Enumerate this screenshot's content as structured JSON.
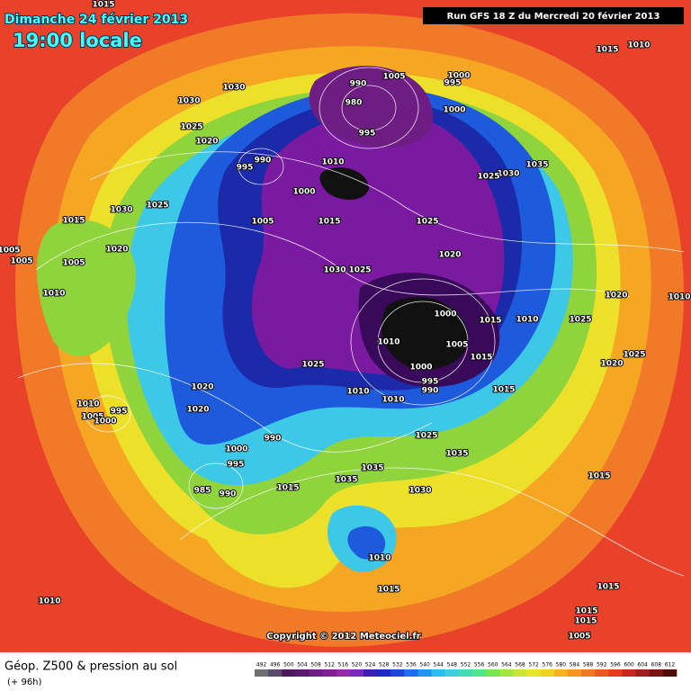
{
  "header": {
    "date": "Dimanche 24 février 2013",
    "time": "19:00 locale",
    "run": "Run GFS 18 Z du Mercredi 20 février 2013"
  },
  "copyright": "Copyright © 2012 Meteociel.fr",
  "footer": {
    "product": "Géop. Z500 & pression au sol",
    "lead": "(+ 96h)"
  },
  "legend": {
    "labels": [
      492,
      496,
      500,
      504,
      508,
      512,
      516,
      520,
      524,
      528,
      532,
      536,
      540,
      544,
      548,
      552,
      556,
      560,
      564,
      568,
      572,
      576,
      580,
      584,
      588,
      592,
      596,
      600,
      604,
      608,
      612
    ],
    "colors": [
      "#707070",
      "#5a4a6a",
      "#4a1a5a",
      "#5a1a6e",
      "#6e1e82",
      "#821e96",
      "#9628aa",
      "#7a28be",
      "#3c1eb4",
      "#1e28c8",
      "#1e46dc",
      "#1e6ef0",
      "#1e96f0",
      "#28bef0",
      "#3cd2dc",
      "#46dcb4",
      "#50e68c",
      "#78e650",
      "#a0e63c",
      "#c8e632",
      "#e6e628",
      "#f0d21e",
      "#f5b41e",
      "#f5961e",
      "#f0781e",
      "#eb5a1e",
      "#e63c1e",
      "#c8281e",
      "#a01e1e",
      "#781414",
      "#500a0a"
    ]
  },
  "pressure_labels": [
    1015,
    1010,
    1015,
    1030,
    1030,
    1025,
    1020,
    990,
    1005,
    1000,
    995,
    980,
    1000,
    995,
    990,
    995,
    1010,
    1035,
    1030,
    1025,
    1000,
    1025,
    1030,
    1015,
    1005,
    1015,
    1025,
    1020,
    1020,
    1005,
    1005,
    1005,
    1030,
    1025,
    1010,
    1020,
    1010,
    1000,
    1015,
    1010,
    1025,
    1010,
    1005,
    1015,
    1025,
    1020,
    1025,
    1000,
    995,
    990,
    1015,
    1010,
    1010,
    1020,
    1020,
    1010,
    1005,
    1000,
    995,
    1025,
    990,
    1000,
    1035,
    995,
    1035,
    1015,
    1035,
    1030,
    985,
    990,
    1015,
    1010,
    1015,
    1010,
    1015,
    1015,
    1015,
    1005
  ]
}
